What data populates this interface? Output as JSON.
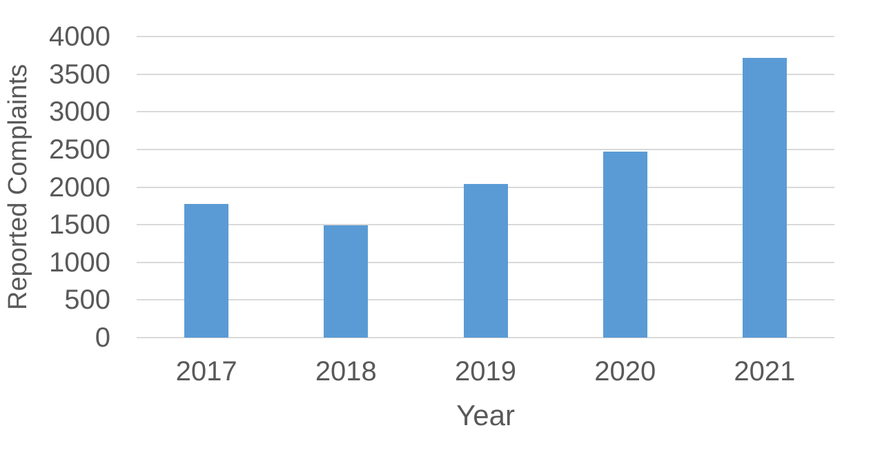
{
  "chart_data": {
    "type": "bar",
    "title": "",
    "categories": [
      "2017",
      "2018",
      "2019",
      "2020",
      "2021"
    ],
    "values": [
      1780,
      1490,
      2040,
      2470,
      3720
    ],
    "xlabel": "Year",
    "ylabel": "Reported Complaints",
    "ylim": [
      0,
      4000
    ],
    "yticks": [
      0,
      500,
      1000,
      1500,
      2000,
      2500,
      3000,
      3500,
      4000
    ],
    "grid": true,
    "legend": false,
    "bar_color": "#5B9BD5",
    "gridline_color": "#D9D9D9",
    "text_color": "#595959",
    "background_color": "#FFFFFF"
  }
}
